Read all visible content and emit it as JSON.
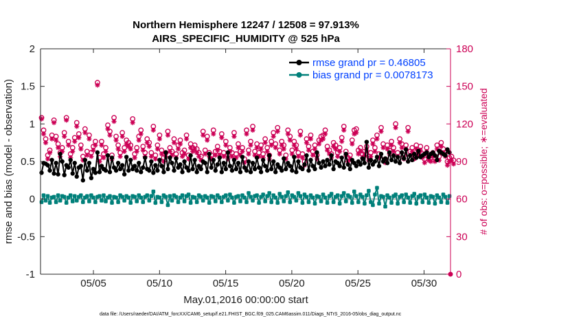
{
  "chart_data": {
    "type": "line",
    "title_line1": "Northern Hemisphere 12247 / 12508 = 97.913%",
    "title_line2": "AIRS_SPECIFIC_HUMIDITY @ 525 hPa",
    "xlabel": "May.01,2016 00:00:00 start",
    "ylabel_left": "rmse and bias (model - observation)",
    "ylabel_right": "# of obs: o=possible; ∗=evaluated",
    "footer": "data file: /Users/raeder/DAI/ATM_forcXX/CAM6_setup/f.e21.FHIST_BGC.f09_025.CAM6assim.011/Diags_NTrS_2016-05/obs_diag_output.nc",
    "xlim": [
      1,
      32
    ],
    "x_ticks": [
      5,
      10,
      15,
      20,
      25,
      30
    ],
    "x_tick_labels": [
      "05/05",
      "05/10",
      "05/15",
      "05/20",
      "05/25",
      "05/30"
    ],
    "ylim_left": [
      -1,
      2
    ],
    "y_ticks_left": [
      -1,
      -0.5,
      0,
      0.5,
      1,
      1.5,
      2
    ],
    "y_tick_labels_left": [
      "-1",
      "-0.5",
      "0",
      "0.5",
      "1",
      "1.5",
      "2"
    ],
    "ylim_right": [
      0,
      180
    ],
    "y_ticks_right": [
      0,
      30,
      60,
      90,
      120,
      150,
      180
    ],
    "y_tick_labels_right": [
      "0",
      "30",
      "60",
      "90",
      "120",
      "150",
      "180"
    ],
    "legend_position": "top-right",
    "grid": false,
    "colors": {
      "rmse": "#000000",
      "bias": "#00807a",
      "obs": "#cc0055",
      "zero_line": "#b3b3b3"
    },
    "series": [
      {
        "name": "rmse grand pr = 0.46805",
        "axis": "left",
        "values": [
          0.35,
          0.48,
          0.47,
          0.45,
          0.38,
          0.52,
          0.34,
          0.48,
          0.33,
          0.6,
          0.5,
          0.32,
          0.45,
          0.42,
          0.52,
          0.34,
          0.48,
          0.3,
          0.42,
          0.44,
          0.25,
          0.52,
          0.38,
          0.48,
          0.28,
          0.4,
          0.35,
          0.62,
          0.36,
          0.44,
          0.4,
          0.38,
          0.58,
          0.36,
          0.55,
          0.42,
          0.38,
          0.48,
          0.4,
          0.45,
          0.33,
          0.56,
          0.38,
          0.52,
          0.4,
          0.44,
          0.38,
          0.48,
          0.36,
          0.42,
          0.55,
          0.4,
          0.38,
          0.5,
          0.35,
          0.45,
          0.38,
          0.52,
          0.44,
          0.36,
          0.62,
          0.4,
          0.55,
          0.48,
          0.38,
          0.54,
          0.42,
          0.46,
          0.36,
          0.5,
          0.42,
          0.38,
          0.58,
          0.4,
          0.52,
          0.36,
          0.44,
          0.4,
          0.5,
          0.48,
          0.36,
          0.6,
          0.42,
          0.52,
          0.38,
          0.46,
          0.55,
          0.36,
          0.48,
          0.4,
          0.62,
          0.44,
          0.38,
          0.52,
          0.4,
          0.48,
          0.36,
          0.56,
          0.42,
          0.38,
          0.5,
          0.36,
          0.48,
          0.4,
          0.55,
          0.42,
          0.36,
          0.52,
          0.44,
          0.38,
          0.58,
          0.4,
          0.5,
          0.36,
          0.46,
          0.42,
          0.38,
          0.54,
          0.4,
          0.48,
          0.44,
          0.38,
          0.56,
          0.36,
          0.5,
          0.42,
          0.4,
          0.46,
          0.58,
          0.38,
          0.52,
          0.44,
          0.4,
          0.62,
          0.48,
          0.42,
          0.5,
          0.44,
          0.52,
          0.46,
          0.58,
          0.4,
          0.5,
          0.48,
          0.44,
          0.55,
          0.42,
          0.6,
          0.46,
          0.4,
          0.52,
          0.48,
          0.44,
          0.5,
          0.46,
          0.54,
          0.48,
          0.76,
          0.42,
          0.52,
          0.46,
          0.5,
          0.56,
          0.44,
          0.6,
          0.5,
          0.54,
          0.48,
          0.62,
          0.52,
          0.58,
          0.5,
          0.56,
          0.48,
          0.62,
          0.54,
          0.66,
          0.5,
          0.58,
          0.52,
          0.6,
          0.55,
          0.64,
          0.56,
          0.58,
          0.6,
          0.62,
          0.56,
          0.6,
          0.62,
          0.58,
          0.52,
          0.64,
          0.62,
          0.6,
          0.58,
          0.66,
          0.62
        ]
      },
      {
        "name": "bias grand pr = 0.0078173",
        "axis": "left",
        "values": [
          -0.04,
          0.05,
          -0.02,
          0.04,
          -0.05,
          0.02,
          0.03,
          -0.04,
          0.05,
          -0.02,
          0.04,
          0.03,
          -0.05,
          0.02,
          0.05,
          -0.03,
          0.04,
          -0.02,
          0.03,
          0.05,
          -0.04,
          0.02,
          0.04,
          -0.03,
          0.05,
          0.02,
          -0.04,
          0.03,
          0.04,
          -0.02,
          0.05,
          -0.03,
          0.02,
          0.04,
          -0.05,
          0.03,
          0.02,
          -0.04,
          0.05,
          0.03,
          -0.02,
          0.04,
          0.02,
          -0.05,
          0.04,
          0.03,
          -0.03,
          0.05,
          0.02,
          -0.04,
          0.03,
          0.05,
          -0.02,
          0.04,
          0.1,
          -0.05,
          0.03,
          0.02,
          -0.04,
          0.05,
          0.03,
          -0.08,
          0.04,
          -0.02,
          0.05,
          0.03,
          -0.04,
          0.02,
          0.05,
          -0.03,
          0.04,
          0.06,
          -0.05,
          0.03,
          0.02,
          -0.04,
          0.05,
          0.03,
          -0.02,
          0.04,
          0.02,
          -0.05,
          0.04,
          0.03,
          -0.03,
          0.05,
          0.02,
          -0.04,
          0.03,
          0.05,
          -0.02,
          0.06,
          0.02,
          -0.05,
          0.03,
          0.04,
          -0.03,
          0.05,
          0.02,
          -0.04,
          0.08,
          0.03,
          -0.02,
          0.04,
          0.05,
          -0.05,
          0.03,
          0.06,
          -0.03,
          0.04,
          0.08,
          -0.04,
          0.05,
          0.02,
          -0.05,
          0.07,
          0.03,
          -0.03,
          0.04,
          0.09,
          -0.04,
          0.05,
          0.03,
          -0.02,
          0.08,
          0.04,
          -0.05,
          0.06,
          0.03,
          -0.04,
          0.05,
          0.02,
          -0.06,
          0.04,
          0.03,
          -0.03,
          0.06,
          0.02,
          -0.05,
          0.04,
          0.07,
          -0.04,
          0.03,
          0.05,
          -0.06,
          0.04,
          0.08,
          -0.03,
          0.05,
          0.03,
          -0.05,
          0.1,
          0.04,
          -0.04,
          0.06,
          0.03,
          -0.06,
          0.05,
          0.11,
          -0.04,
          -0.08,
          0.06,
          0.15,
          -0.06,
          0.04,
          0.03,
          -0.1,
          0.05,
          0.02,
          -0.05,
          0.04,
          0.06,
          -0.06,
          0.03,
          0.05,
          -0.04,
          0.06,
          0.02,
          -0.05,
          0.04,
          0.07,
          -0.06,
          0.03,
          0.05,
          -0.04,
          0.06,
          0.02,
          -0.05,
          0.04,
          0.03,
          -0.06,
          0.05,
          0.02,
          -0.04,
          0.06,
          0.03,
          -0.05,
          0.04
        ]
      },
      {
        "name": "# of obs possible",
        "axis": "right",
        "marker": "o",
        "values": [
          125,
          115,
          108,
          95,
          99,
          111,
          123,
          110,
          104,
          97,
          101,
          113,
          125,
          106,
          96,
          101,
          109,
          121,
          112,
          103,
          94,
          116,
          98,
          111,
          97,
          102,
          106,
          153,
          93,
          106,
          96,
          101,
          119,
          114,
          95,
          125,
          110,
          103,
          97,
          113,
          101,
          107,
          105,
          103,
          124,
          96,
          101,
          110,
          115,
          102,
          97,
          108,
          105,
          97,
          118,
          95,
          103,
          111,
          99,
          93,
          97,
          114,
          101,
          98,
          108,
          96,
          103,
          107,
          97,
          99,
          111,
          95,
          104,
          101,
          103,
          100,
          97,
          94,
          114,
          99,
          110,
          97,
          95,
          115,
          98,
          102,
          98,
          112,
          97,
          106,
          95,
          101,
          97,
          113,
          96,
          104,
          98,
          101,
          92,
          115,
          99,
          106,
          118,
          98,
          104,
          97,
          103,
          96,
          108,
          101,
          95,
          106,
          113,
          104,
          117,
          99,
          106,
          103,
          95,
          115,
          110,
          99,
          106,
          103,
          97,
          114,
          96,
          90,
          108,
          102,
          111,
          98,
          103,
          95,
          107,
          110,
          111,
          115,
          102,
          99,
          96,
          105,
          103,
          97,
          101,
          109,
          118,
          98,
          93,
          95,
          107,
          115,
          116,
          99,
          101,
          96,
          98,
          102,
          94,
          97,
          107,
          101,
          111,
          96,
          117,
          104,
          92,
          103,
          99,
          106,
          101,
          120,
          97,
          108,
          104,
          95,
          103,
          117,
          98,
          101,
          95,
          103,
          98,
          102,
          96,
          92,
          101,
          94,
          93,
          97,
          93,
          103,
          94,
          105,
          100,
          97,
          90,
          93,
          94,
          91
        ]
      },
      {
        "name": "# of obs evaluated",
        "axis": "right",
        "marker": "*",
        "values": [
          124,
          112,
          105,
          92,
          97,
          108,
          121,
          107,
          101,
          94,
          98,
          110,
          123,
          103,
          93,
          98,
          106,
          118,
          109,
          100,
          91,
          113,
          95,
          108,
          94,
          99,
          103,
          151,
          90,
          103,
          93,
          98,
          116,
          111,
          92,
          122,
          107,
          100,
          94,
          110,
          98,
          104,
          102,
          100,
          121,
          93,
          98,
          107,
          112,
          99,
          94,
          105,
          102,
          94,
          115,
          92,
          100,
          108,
          96,
          90,
          94,
          111,
          98,
          95,
          105,
          93,
          100,
          104,
          94,
          96,
          108,
          92,
          101,
          98,
          100,
          97,
          94,
          91,
          111,
          96,
          107,
          94,
          92,
          112,
          95,
          99,
          95,
          109,
          94,
          103,
          92,
          98,
          94,
          110,
          93,
          101,
          95,
          98,
          89,
          112,
          96,
          103,
          115,
          95,
          101,
          94,
          100,
          93,
          105,
          98,
          92,
          103,
          110,
          101,
          114,
          96,
          103,
          100,
          92,
          112,
          107,
          96,
          103,
          100,
          94,
          111,
          93,
          87,
          105,
          99,
          108,
          95,
          100,
          92,
          104,
          107,
          108,
          112,
          99,
          96,
          93,
          102,
          100,
          94,
          98,
          106,
          115,
          95,
          90,
          92,
          104,
          112,
          113,
          96,
          98,
          93,
          95,
          99,
          91,
          94,
          104,
          98,
          108,
          93,
          114,
          101,
          89,
          100,
          96,
          103,
          98,
          117,
          94,
          105,
          101,
          92,
          100,
          114,
          95,
          98,
          92,
          100,
          95,
          99,
          93,
          89,
          98,
          91,
          90,
          94,
          90,
          100,
          91,
          102,
          97,
          94,
          87,
          90,
          91,
          88
        ]
      }
    ]
  }
}
